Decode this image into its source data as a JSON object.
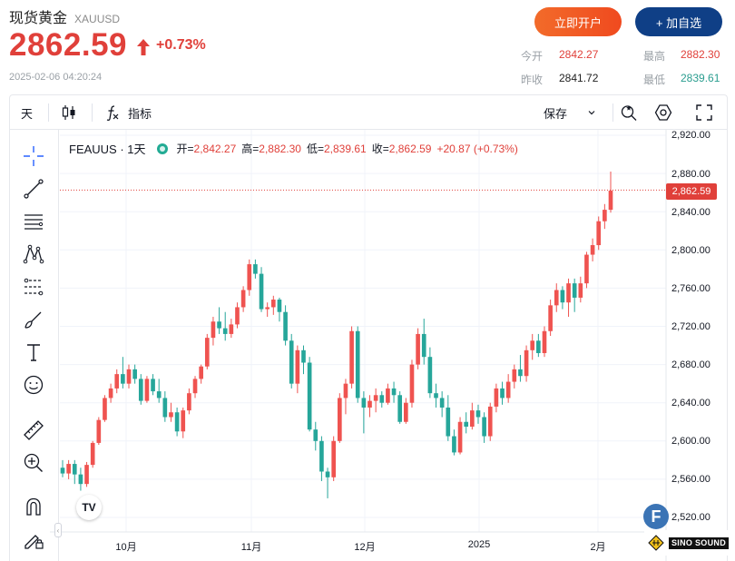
{
  "header": {
    "title": "现货黄金",
    "symbol": "XAUUSD",
    "price": "2862.59",
    "change_pct": "+0.73%",
    "timestamp": "2025-02-06 04:20:24",
    "open_account_label": "立即开户",
    "add_watchlist_label": "+ 加自选"
  },
  "stats": {
    "open_label": "今开",
    "open_value": "2842.27",
    "high_label": "最高",
    "high_value": "2882.30",
    "prev_close_label": "昨收",
    "prev_close_value": "2841.72",
    "low_label": "最低",
    "low_value": "2839.61"
  },
  "toolbar": {
    "interval_label": "天",
    "indicators_label": "指标",
    "save_label": "保存"
  },
  "legend": {
    "name": "FEAUUS · 1天",
    "open_label": "开=",
    "open_value": "2,842.27",
    "high_label": "高=",
    "high_value": "2,882.30",
    "low_label": "低=",
    "low_value": "2,839.61",
    "close_label": "收=",
    "close_value": "2,862.59",
    "change": "+20.87 (+0.73%)"
  },
  "price_tag": "2,862.59",
  "y_axis_labels": [
    "2,920.00",
    "2,880.00",
    "2,840.00",
    "2,800.00",
    "2,760.00",
    "2,720.00",
    "2,680.00",
    "2,640.00",
    "2,600.00",
    "2,560.00",
    "2,520.00"
  ],
  "x_axis_labels": [
    "10月",
    "11月",
    "12月",
    "2025",
    "2月"
  ],
  "watermark": {
    "logo_letter": "F",
    "text": "SINO SOUND"
  },
  "colors": {
    "up": "#ef5350",
    "down": "#26a69a",
    "accent_red": "#e0403a",
    "brand_blue": "#0f3f86"
  },
  "chart_data": {
    "type": "candlestick",
    "interval": "1D",
    "y_range": [
      2510,
      2930
    ],
    "last_close": 2862.59,
    "candles": [
      [
        2572,
        2580,
        2562,
        2566
      ],
      [
        2566,
        2580,
        2560,
        2576
      ],
      [
        2576,
        2580,
        2555,
        2565
      ],
      [
        2565,
        2572,
        2548,
        2555
      ],
      [
        2555,
        2578,
        2552,
        2575
      ],
      [
        2575,
        2600,
        2572,
        2598
      ],
      [
        2598,
        2625,
        2596,
        2622
      ],
      [
        2622,
        2648,
        2620,
        2645
      ],
      [
        2645,
        2660,
        2640,
        2655
      ],
      [
        2655,
        2675,
        2650,
        2670
      ],
      [
        2670,
        2688,
        2655,
        2660
      ],
      [
        2660,
        2680,
        2655,
        2675
      ],
      [
        2675,
        2680,
        2660,
        2665
      ],
      [
        2665,
        2670,
        2638,
        2642
      ],
      [
        2642,
        2668,
        2640,
        2665
      ],
      [
        2665,
        2670,
        2648,
        2652
      ],
      [
        2652,
        2665,
        2640,
        2645
      ],
      [
        2645,
        2652,
        2620,
        2625
      ],
      [
        2625,
        2640,
        2620,
        2630
      ],
      [
        2630,
        2635,
        2605,
        2610
      ],
      [
        2610,
        2635,
        2603,
        2632
      ],
      [
        2632,
        2655,
        2628,
        2650
      ],
      [
        2650,
        2668,
        2645,
        2665
      ],
      [
        2665,
        2680,
        2660,
        2678
      ],
      [
        2678,
        2712,
        2675,
        2708
      ],
      [
        2708,
        2730,
        2700,
        2725
      ],
      [
        2725,
        2740,
        2712,
        2718
      ],
      [
        2718,
        2735,
        2705,
        2712
      ],
      [
        2712,
        2728,
        2708,
        2722
      ],
      [
        2722,
        2745,
        2718,
        2740
      ],
      [
        2740,
        2762,
        2735,
        2758
      ],
      [
        2758,
        2790,
        2752,
        2785
      ],
      [
        2785,
        2790,
        2770,
        2775
      ],
      [
        2775,
        2782,
        2735,
        2738
      ],
      [
        2738,
        2745,
        2730,
        2740
      ],
      [
        2740,
        2752,
        2732,
        2748
      ],
      [
        2748,
        2750,
        2725,
        2735
      ],
      [
        2735,
        2742,
        2700,
        2705
      ],
      [
        2705,
        2712,
        2655,
        2660
      ],
      [
        2660,
        2700,
        2650,
        2695
      ],
      [
        2695,
        2700,
        2670,
        2682
      ],
      [
        2682,
        2688,
        2610,
        2612
      ],
      [
        2612,
        2620,
        2590,
        2600
      ],
      [
        2600,
        2605,
        2558,
        2568
      ],
      [
        2568,
        2572,
        2540,
        2562
      ],
      [
        2562,
        2605,
        2558,
        2600
      ],
      [
        2600,
        2650,
        2598,
        2645
      ],
      [
        2645,
        2665,
        2628,
        2660
      ],
      [
        2660,
        2720,
        2655,
        2715
      ],
      [
        2715,
        2720,
        2640,
        2645
      ],
      [
        2645,
        2652,
        2608,
        2635
      ],
      [
        2635,
        2648,
        2625,
        2642
      ],
      [
        2642,
        2655,
        2630,
        2648
      ],
      [
        2648,
        2652,
        2635,
        2640
      ],
      [
        2640,
        2660,
        2638,
        2655
      ],
      [
        2655,
        2662,
        2640,
        2648
      ],
      [
        2648,
        2652,
        2618,
        2620
      ],
      [
        2620,
        2645,
        2618,
        2640
      ],
      [
        2640,
        2685,
        2635,
        2680
      ],
      [
        2680,
        2718,
        2675,
        2712
      ],
      [
        2712,
        2728,
        2680,
        2688
      ],
      [
        2688,
        2698,
        2645,
        2650
      ],
      [
        2650,
        2660,
        2635,
        2645
      ],
      [
        2645,
        2652,
        2625,
        2635
      ],
      [
        2635,
        2648,
        2600,
        2605
      ],
      [
        2605,
        2612,
        2585,
        2588
      ],
      [
        2588,
        2625,
        2586,
        2620
      ],
      [
        2620,
        2630,
        2608,
        2615
      ],
      [
        2615,
        2640,
        2612,
        2632
      ],
      [
        2632,
        2638,
        2618,
        2625
      ],
      [
        2625,
        2630,
        2598,
        2605
      ],
      [
        2605,
        2640,
        2600,
        2636
      ],
      [
        2636,
        2660,
        2630,
        2655
      ],
      [
        2655,
        2662,
        2638,
        2645
      ],
      [
        2645,
        2670,
        2640,
        2662
      ],
      [
        2662,
        2680,
        2655,
        2675
      ],
      [
        2675,
        2690,
        2662,
        2668
      ],
      [
        2668,
        2700,
        2662,
        2695
      ],
      [
        2695,
        2712,
        2685,
        2705
      ],
      [
        2705,
        2712,
        2688,
        2692
      ],
      [
        2692,
        2720,
        2688,
        2715
      ],
      [
        2715,
        2748,
        2710,
        2742
      ],
      [
        2742,
        2765,
        2735,
        2758
      ],
      [
        2758,
        2762,
        2738,
        2745
      ],
      [
        2745,
        2770,
        2730,
        2765
      ],
      [
        2765,
        2770,
        2735,
        2750
      ],
      [
        2750,
        2772,
        2745,
        2765
      ],
      [
        2765,
        2798,
        2760,
        2795
      ],
      [
        2795,
        2812,
        2788,
        2805
      ],
      [
        2805,
        2835,
        2800,
        2830
      ],
      [
        2830,
        2848,
        2822,
        2842
      ],
      [
        2842,
        2882,
        2839,
        2862
      ]
    ]
  }
}
